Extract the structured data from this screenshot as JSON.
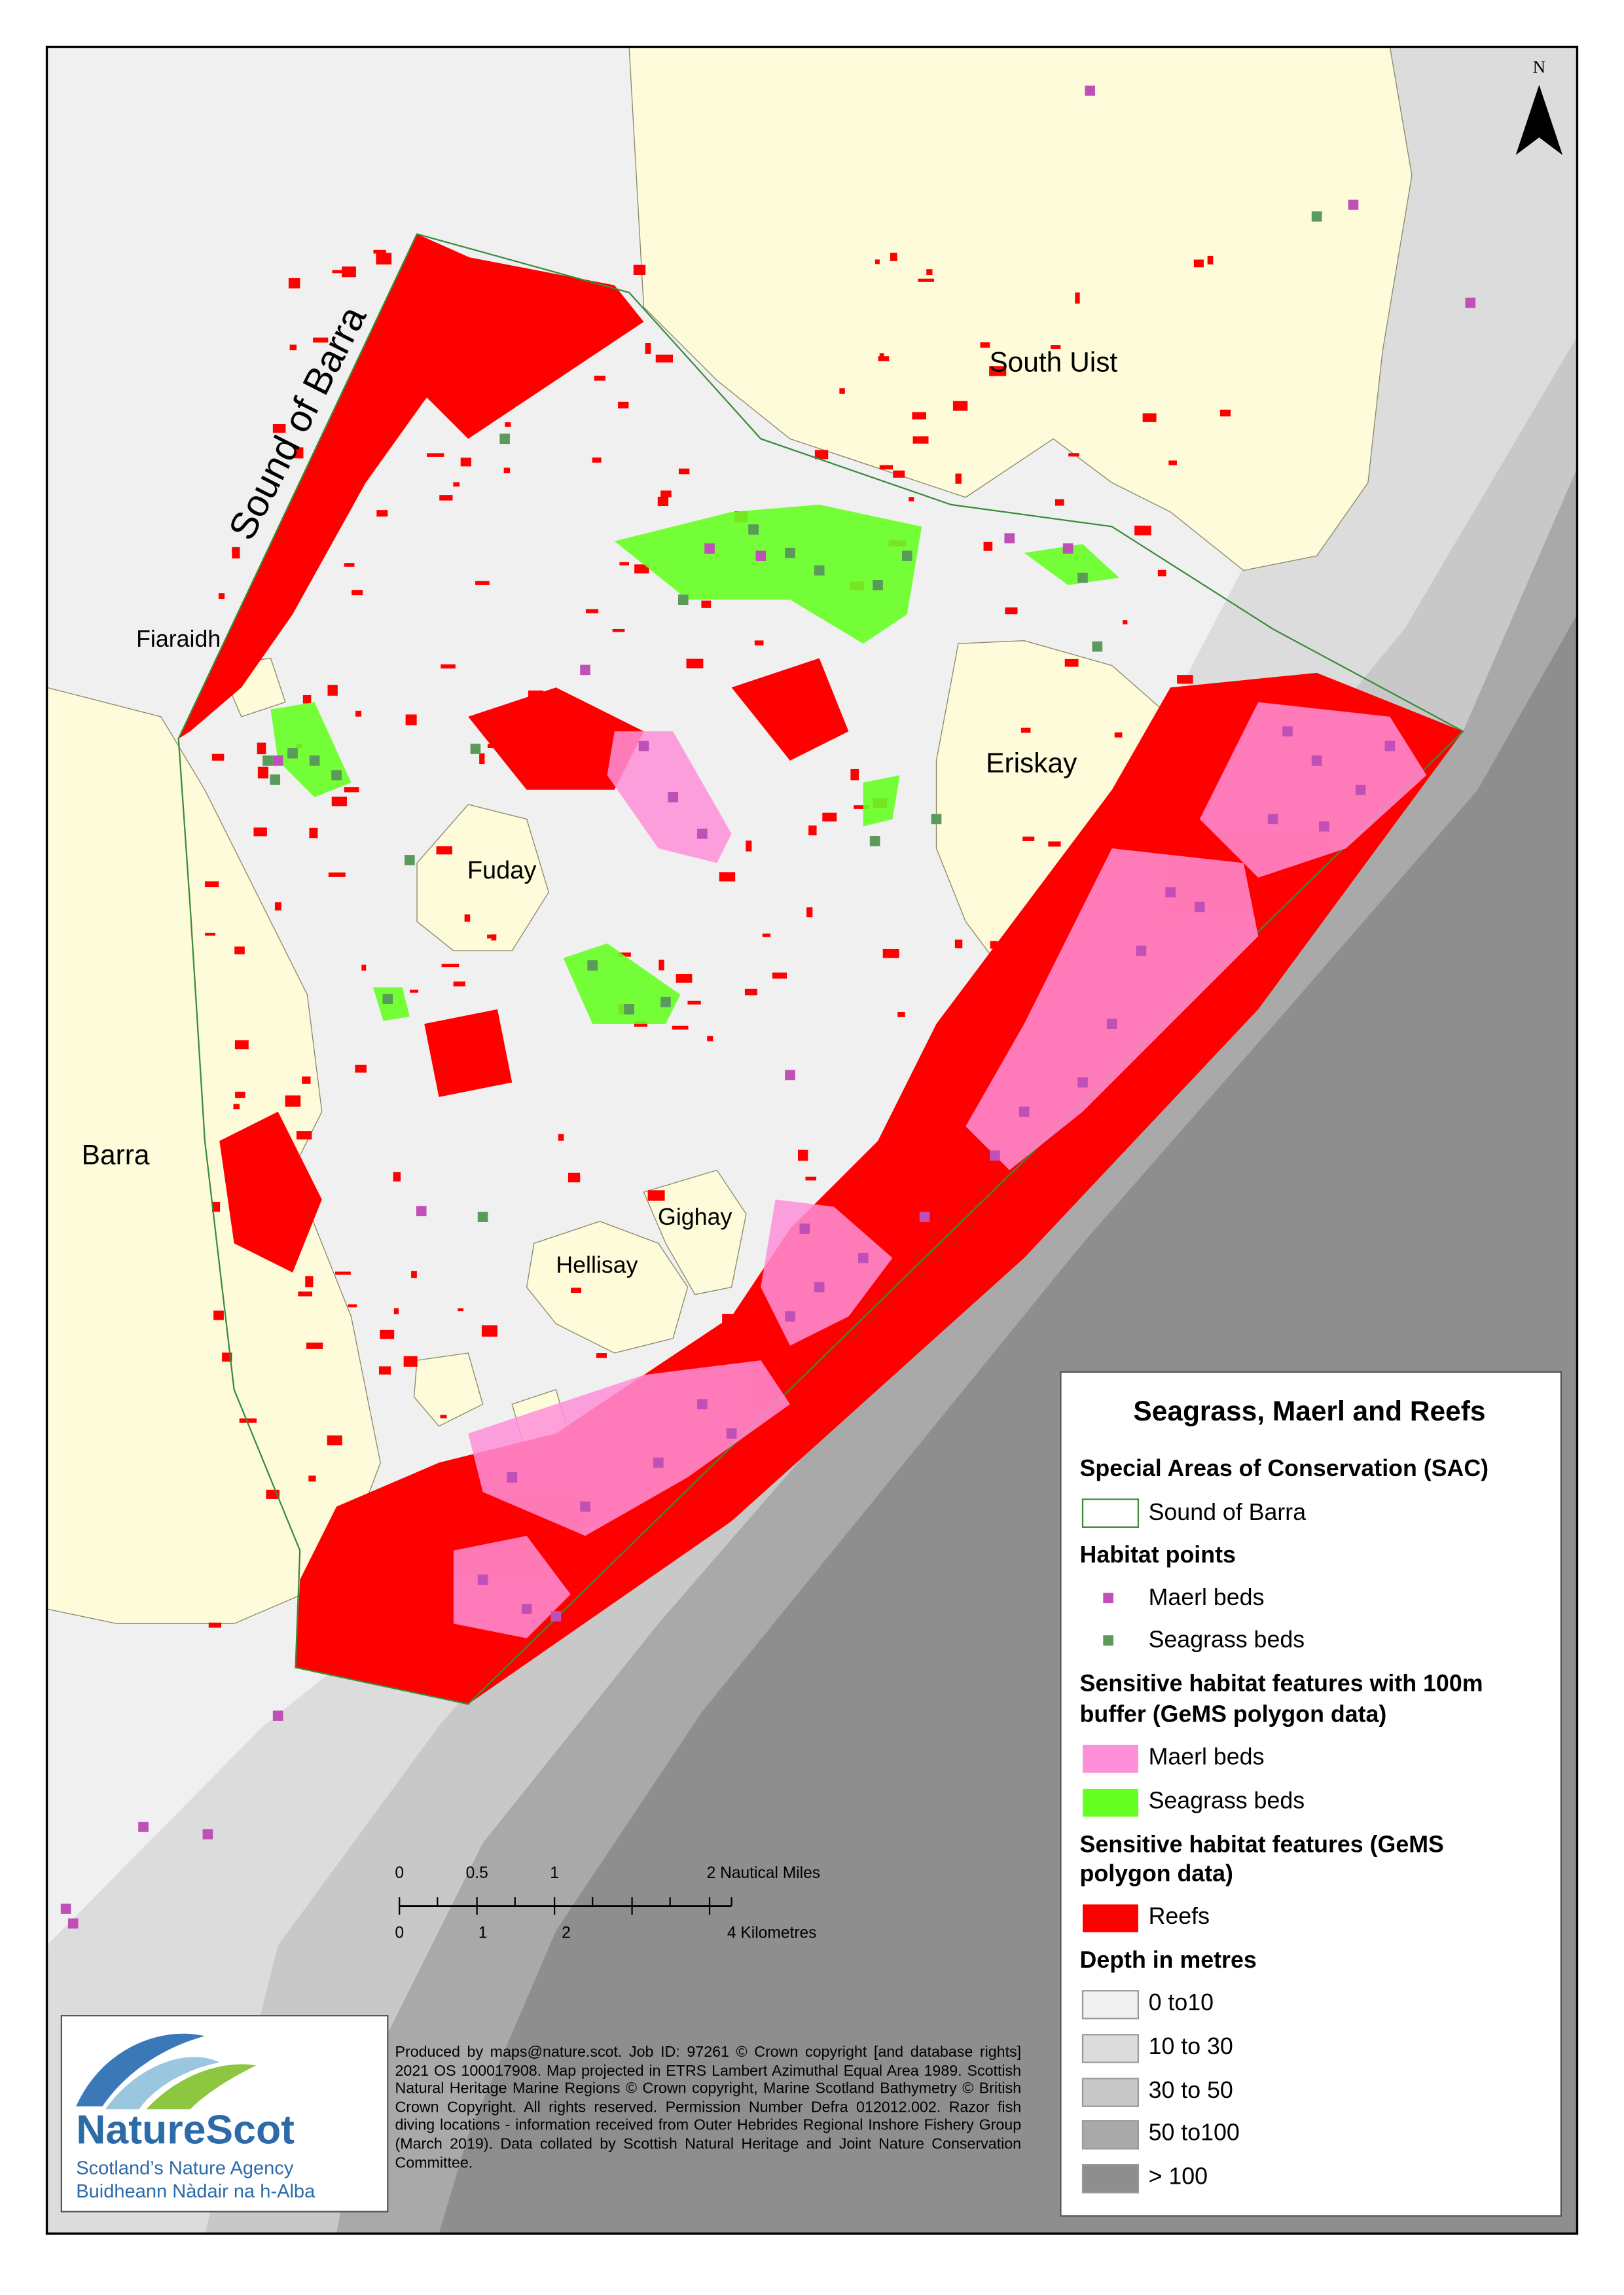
{
  "map": {
    "north": "N",
    "labels": {
      "sound": "Sound of Barra",
      "south_uist": "South Uist",
      "fiaraidh": "Fiaraidh",
      "eriskay": "Eriskay",
      "fuday": "Fuday",
      "barra": "Barra",
      "gighay": "Gighay",
      "hellisay": "Hellisay"
    }
  },
  "legend": {
    "title": "Seagrass, Maerl and Reefs",
    "sac": {
      "heading": "Special Areas of Conservation (SAC)",
      "items": [
        "Sound of Barra"
      ]
    },
    "points": {
      "heading": "Habitat points",
      "items": [
        "Maerl beds",
        "Seagrass beds"
      ]
    },
    "buffer": {
      "heading": [
        "Sensitive habitat features with 100m",
        "buffer (GeMS polygon data)"
      ],
      "items": [
        "Maerl beds",
        "Seagrass beds"
      ]
    },
    "features": {
      "heading": [
        "Sensitive habitat features (GeMS",
        "polygon data)"
      ],
      "items": [
        "Reefs"
      ]
    },
    "depth": {
      "heading": "Depth in metres",
      "items": [
        "0 to10",
        "10 to 30",
        "30 to 50",
        "50 to100",
        "> 100"
      ]
    }
  },
  "scale_bar": {
    "miles": [
      "0",
      "0.5",
      "1",
      "2 Nautical Miles"
    ],
    "km": [
      "0",
      "1",
      "2",
      "4 Kilometres"
    ]
  },
  "logo": {
    "name": "NatureScot",
    "tagline": [
      "Scotland’s Nature Agency",
      "Buidheann Nàdair na h-Alba"
    ]
  },
  "credits": "Produced by maps@nature.scot. Job ID: 97261 © Crown copyright [and database rights] 2021 OS 100017908. Map projected in ETRS Lambert Azimuthal Equal Area 1989. Scottish Natural Heritage Marine Regions © Crown copyright, Marine Scotland Bathymetry © British Crown Copyright. All rights reserved. Permission Number Defra 012012.002. Razor fish diving locations - information received from Outer Hebrides Regional Inshore Fishery Group (March 2019). Data collated by Scottish Natural Heritage and Joint Nature Conservation Committee."
}
